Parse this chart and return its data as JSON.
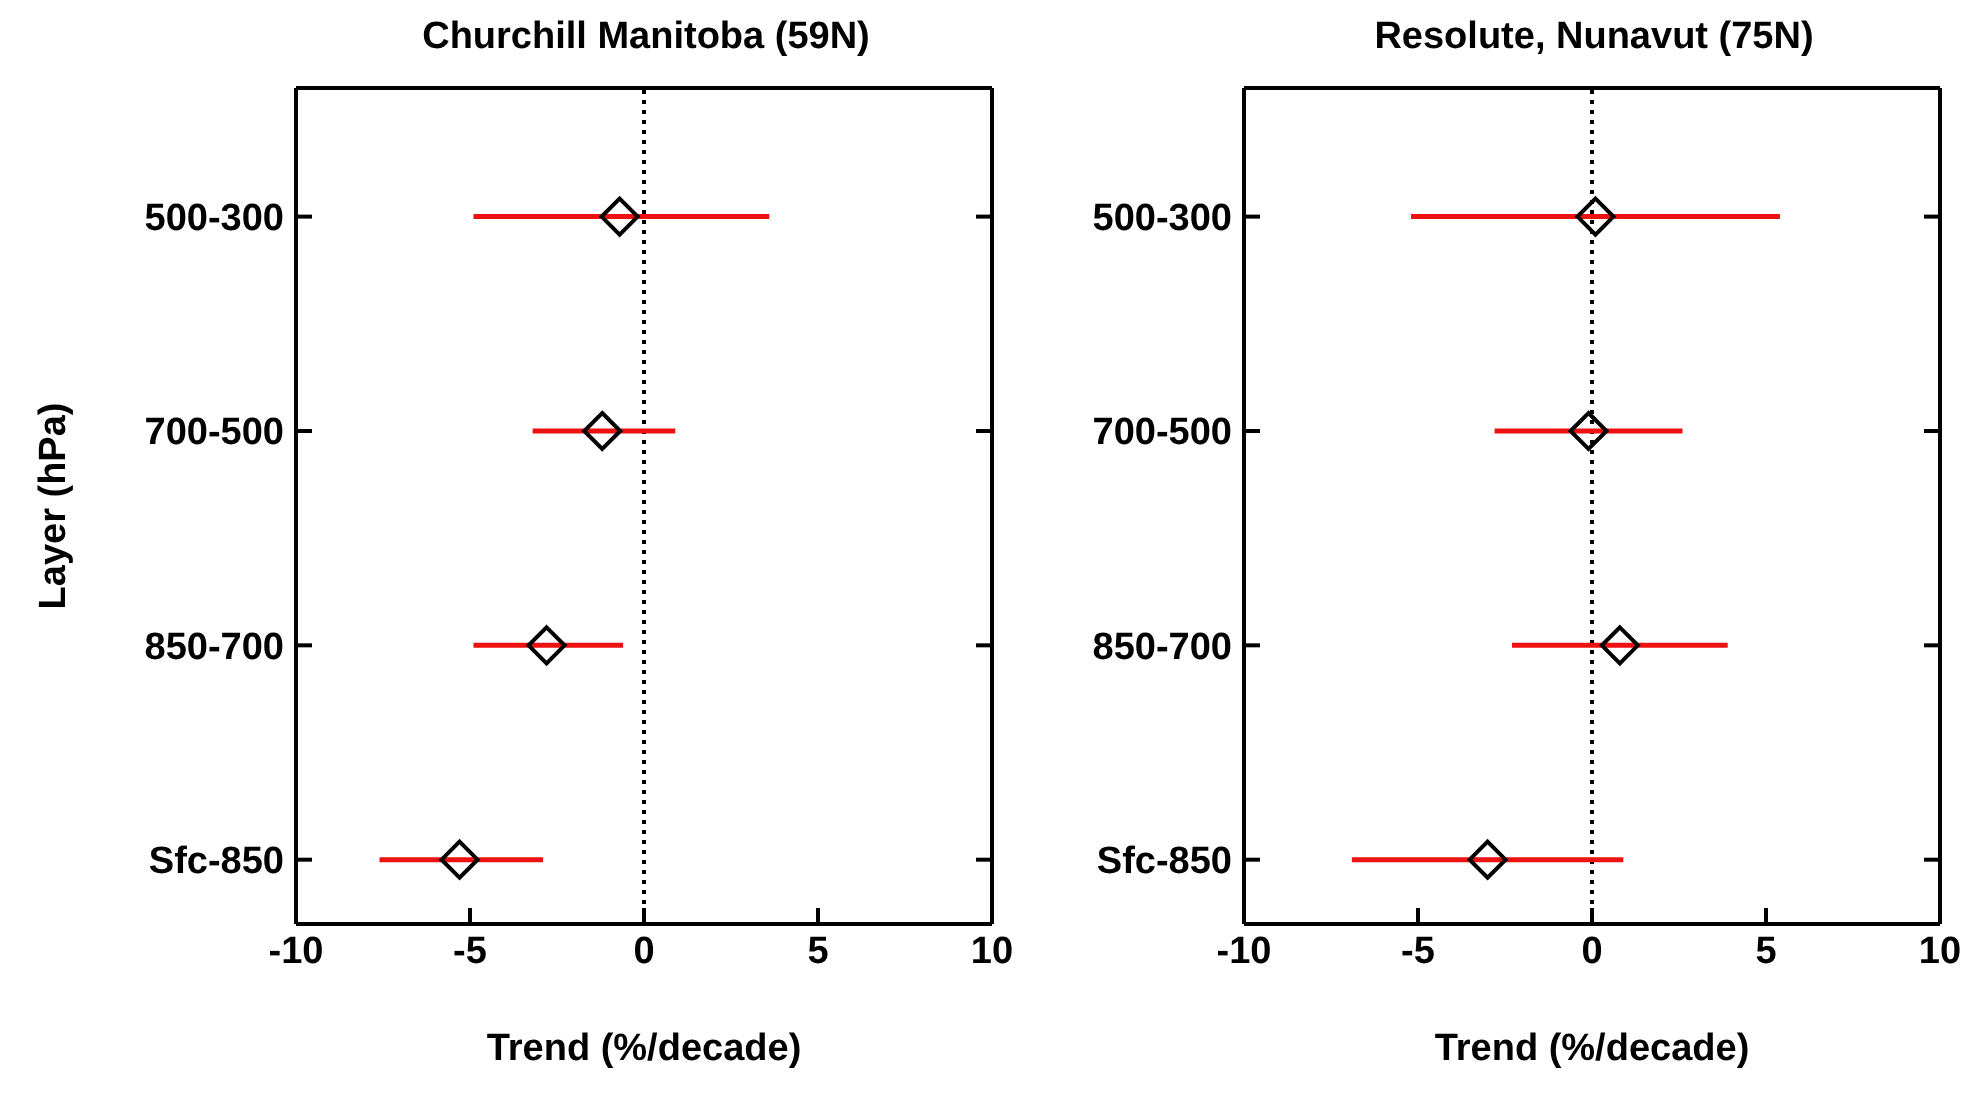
{
  "chart_data": [
    {
      "type": "scatter",
      "title": "Churchill Manitoba (59N)",
      "xlabel": "Trend (%/decade)",
      "ylabel": "Layer (hPa)",
      "orientation": "horizontal",
      "categories": [
        "500-300",
        "700-500",
        "850-700",
        "Sfc-850"
      ],
      "values": [
        -0.7,
        -1.2,
        -2.8,
        -5.3
      ],
      "errors": [
        [
          -4.9,
          3.6
        ],
        [
          -3.2,
          0.9
        ],
        [
          -4.9,
          -0.6
        ],
        [
          -7.6,
          -2.9
        ]
      ],
      "color": "#000000",
      "marker": "diamond",
      "xlim": [
        -10,
        10
      ],
      "xticks": [
        -10,
        -5,
        0,
        5,
        10
      ],
      "ref_lines": [
        {
          "axis": "x",
          "value": 0,
          "line_style": "dotted",
          "color": "#000000"
        }
      ]
    },
    {
      "type": "scatter",
      "title": "Resolute, Nunavut (75N)",
      "xlabel": "Trend (%/decade)",
      "orientation": "horizontal",
      "categories": [
        "500-300",
        "700-500",
        "850-700",
        "Sfc-850"
      ],
      "values": [
        0.1,
        -0.1,
        0.8,
        -3.0
      ],
      "errors": [
        [
          -5.2,
          5.4
        ],
        [
          -2.8,
          2.6
        ],
        [
          -2.3,
          3.9
        ],
        [
          -6.9,
          0.9
        ]
      ],
      "color": "#000000",
      "marker": "diamond",
      "xlim": [
        -10,
        10
      ],
      "xticks": [
        -10,
        -5,
        0,
        5,
        10
      ],
      "ref_lines": [
        {
          "axis": "x",
          "value": 0,
          "line_style": "dotted",
          "color": "#000000"
        }
      ]
    }
  ]
}
